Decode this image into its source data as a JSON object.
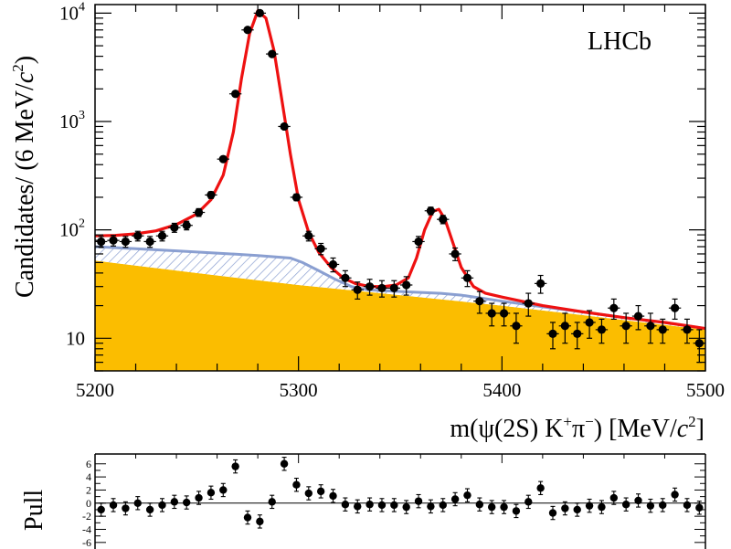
{
  "chart_data": [
    {
      "type": "scatter",
      "panel": "main",
      "title": "",
      "annotation": "LHCb",
      "xlabel": {
        "prefix": "m(",
        "psi": "ψ",
        "mid": "(2S) K",
        "kplus": "+",
        "pi": "π",
        "piminus": "−",
        "suffix": ") [MeV/",
        "c": "c",
        "csq": "2",
        "close": "]"
      },
      "ylabel": {
        "prefix": "Candidates/ (6 MeV/",
        "c": "c",
        "csq": "2",
        "close": ")"
      },
      "xlim": [
        5200,
        5500
      ],
      "ylim": [
        5,
        12000
      ],
      "yscale": "log",
      "grid": false,
      "x_ticks": [
        {
          "value": 5200,
          "label": "5200"
        },
        {
          "value": 5300,
          "label": "5300"
        },
        {
          "value": 5400,
          "label": "5400"
        },
        {
          "value": 5500,
          "label": "5500"
        }
      ],
      "y_ticks": [
        {
          "value": 10,
          "base": "10",
          "exp": ""
        },
        {
          "value": 100,
          "base": "10",
          "exp": "2"
        },
        {
          "value": 1000,
          "base": "10",
          "exp": "3"
        },
        {
          "value": 10000,
          "base": "10",
          "exp": "4"
        }
      ],
      "bin_width": 6,
      "data_points": [
        {
          "x": 5203,
          "y": 78,
          "err": 9
        },
        {
          "x": 5209,
          "y": 80,
          "err": 9
        },
        {
          "x": 5215,
          "y": 78,
          "err": 9
        },
        {
          "x": 5221,
          "y": 88,
          "err": 9
        },
        {
          "x": 5227,
          "y": 78,
          "err": 9
        },
        {
          "x": 5233,
          "y": 88,
          "err": 9
        },
        {
          "x": 5239,
          "y": 105,
          "err": 10
        },
        {
          "x": 5245,
          "y": 110,
          "err": 10
        },
        {
          "x": 5251,
          "y": 145,
          "err": 12
        },
        {
          "x": 5257,
          "y": 210,
          "err": 15
        },
        {
          "x": 5263,
          "y": 450,
          "err": 21
        },
        {
          "x": 5269,
          "y": 1800,
          "err": 42
        },
        {
          "x": 5275,
          "y": 7000,
          "err": 84
        },
        {
          "x": 5281,
          "y": 10000,
          "err": 100
        },
        {
          "x": 5287,
          "y": 4200,
          "err": 65
        },
        {
          "x": 5293,
          "y": 900,
          "err": 30
        },
        {
          "x": 5299,
          "y": 200,
          "err": 14
        },
        {
          "x": 5305,
          "y": 88,
          "err": 9
        },
        {
          "x": 5311,
          "y": 67,
          "err": 8
        },
        {
          "x": 5317,
          "y": 48,
          "err": 7
        },
        {
          "x": 5323,
          "y": 36,
          "err": 6
        },
        {
          "x": 5329,
          "y": 28,
          "err": 5
        },
        {
          "x": 5335,
          "y": 30,
          "err": 5
        },
        {
          "x": 5341,
          "y": 29,
          "err": 5
        },
        {
          "x": 5347,
          "y": 29,
          "err": 5
        },
        {
          "x": 5353,
          "y": 31,
          "err": 6
        },
        {
          "x": 5359,
          "y": 78,
          "err": 9
        },
        {
          "x": 5365,
          "y": 150,
          "err": 12
        },
        {
          "x": 5371,
          "y": 125,
          "err": 11
        },
        {
          "x": 5377,
          "y": 60,
          "err": 8
        },
        {
          "x": 5383,
          "y": 36,
          "err": 6
        },
        {
          "x": 5389,
          "y": 22,
          "err": 5
        },
        {
          "x": 5395,
          "y": 17,
          "err": 4
        },
        {
          "x": 5401,
          "y": 17,
          "err": 4
        },
        {
          "x": 5407,
          "y": 13,
          "err": 4
        },
        {
          "x": 5413,
          "y": 21,
          "err": 5
        },
        {
          "x": 5419,
          "y": 32,
          "err": 6
        },
        {
          "x": 5425,
          "y": 11,
          "err": 3
        },
        {
          "x": 5431,
          "y": 13,
          "err": 4
        },
        {
          "x": 5437,
          "y": 11,
          "err": 3
        },
        {
          "x": 5443,
          "y": 14,
          "err": 4
        },
        {
          "x": 5449,
          "y": 12,
          "err": 3
        },
        {
          "x": 5455,
          "y": 19,
          "err": 4
        },
        {
          "x": 5461,
          "y": 13,
          "err": 4
        },
        {
          "x": 5467,
          "y": 16,
          "err": 4
        },
        {
          "x": 5473,
          "y": 13,
          "err": 4
        },
        {
          "x": 5479,
          "y": 12,
          "err": 3
        },
        {
          "x": 5485,
          "y": 19,
          "err": 4
        },
        {
          "x": 5491,
          "y": 12,
          "err": 3
        },
        {
          "x": 5497,
          "y": 9,
          "err": 3
        }
      ],
      "components": {
        "total_fit": {
          "color": "#ee1111",
          "points": [
            [
              5200,
              88
            ],
            [
              5210,
              89
            ],
            [
              5220,
              92
            ],
            [
              5230,
              98
            ],
            [
              5240,
              112
            ],
            [
              5250,
              140
            ],
            [
              5257,
              190
            ],
            [
              5263,
              320
            ],
            [
              5268,
              800
            ],
            [
              5272,
              2500
            ],
            [
              5276,
              6500
            ],
            [
              5280,
              10500
            ],
            [
              5284,
              9000
            ],
            [
              5288,
              4500
            ],
            [
              5292,
              1500
            ],
            [
              5296,
              500
            ],
            [
              5300,
              190
            ],
            [
              5305,
              95
            ],
            [
              5310,
              62
            ],
            [
              5316,
              45
            ],
            [
              5322,
              36
            ],
            [
              5328,
              32
            ],
            [
              5335,
              30
            ],
            [
              5342,
              30
            ],
            [
              5348,
              31
            ],
            [
              5354,
              36
            ],
            [
              5358,
              55
            ],
            [
              5362,
              100
            ],
            [
              5366,
              148
            ],
            [
              5369,
              155
            ],
            [
              5372,
              125
            ],
            [
              5376,
              75
            ],
            [
              5380,
              45
            ],
            [
              5386,
              30
            ],
            [
              5392,
              26
            ],
            [
              5400,
              24
            ],
            [
              5420,
              20
            ],
            [
              5440,
              17.5
            ],
            [
              5460,
              15.5
            ],
            [
              5480,
              14
            ],
            [
              5500,
              12.3
            ]
          ]
        },
        "peaking_background": {
          "color": "#8a9fd1",
          "points": [
            [
              5200,
              70
            ],
            [
              5220,
              67
            ],
            [
              5240,
              64
            ],
            [
              5260,
              61
            ],
            [
              5280,
              58
            ],
            [
              5296,
              55
            ],
            [
              5302,
              50
            ],
            [
              5310,
              42
            ],
            [
              5318,
              35
            ],
            [
              5326,
              30
            ],
            [
              5334,
              28
            ],
            [
              5350,
              27
            ],
            [
              5370,
              26
            ],
            [
              5380,
              25
            ],
            [
              5400,
              22
            ],
            [
              5420,
              19.5
            ],
            [
              5440,
              17.5
            ],
            [
              5460,
              15.5
            ],
            [
              5480,
              14
            ],
            [
              5500,
              12.3
            ]
          ]
        },
        "combinatorial_background": {
          "color": "#fbbd00",
          "points": [
            [
              5200,
              52
            ],
            [
              5250,
              40
            ],
            [
              5300,
              31
            ],
            [
              5350,
              25
            ],
            [
              5400,
              20
            ],
            [
              5450,
              15.5
            ],
            [
              5500,
              12
            ]
          ]
        }
      }
    },
    {
      "type": "scatter",
      "panel": "pull",
      "ylabel": "Pull",
      "xlim": [
        5200,
        5500
      ],
      "ylim": [
        -7,
        7.5
      ],
      "y_ticks": [
        {
          "value": 6,
          "label": "6"
        },
        {
          "value": 4,
          "label": "4"
        },
        {
          "value": 2,
          "label": "2"
        },
        {
          "value": 0,
          "label": "0"
        },
        {
          "value": -2,
          "label": "-2"
        },
        {
          "value": -4,
          "label": "-4"
        },
        {
          "value": -6,
          "label": "-6"
        }
      ],
      "x": [
        5203,
        5209,
        5215,
        5221,
        5227,
        5233,
        5239,
        5245,
        5251,
        5257,
        5263,
        5269,
        5275,
        5281,
        5287,
        5293,
        5299,
        5305,
        5311,
        5317,
        5323,
        5329,
        5335,
        5341,
        5347,
        5353,
        5359,
        5365,
        5371,
        5377,
        5383,
        5389,
        5395,
        5401,
        5407,
        5413,
        5419,
        5425,
        5431,
        5437,
        5443,
        5449,
        5455,
        5461,
        5467,
        5473,
        5479,
        5485,
        5491,
        5497
      ],
      "values": [
        -1.0,
        -0.3,
        -0.8,
        -0.0,
        -1.0,
        -0.3,
        0.2,
        0.1,
        0.8,
        1.6,
        2.0,
        5.6,
        -2.2,
        -2.8,
        0.2,
        6.0,
        2.8,
        1.5,
        1.8,
        1.1,
        -0.2,
        -0.5,
        -0.2,
        -0.3,
        -0.3,
        -0.6,
        0.3,
        -0.5,
        -0.3,
        0.6,
        1.2,
        -0.2,
        -0.6,
        -0.6,
        -1.2,
        0.2,
        2.3,
        -1.5,
        -0.8,
        -1.0,
        -0.4,
        -0.6,
        0.8,
        -0.2,
        0.4,
        -0.4,
        -0.3,
        1.3,
        -0.3,
        -0.7
      ],
      "errors": 1.0
    }
  ]
}
